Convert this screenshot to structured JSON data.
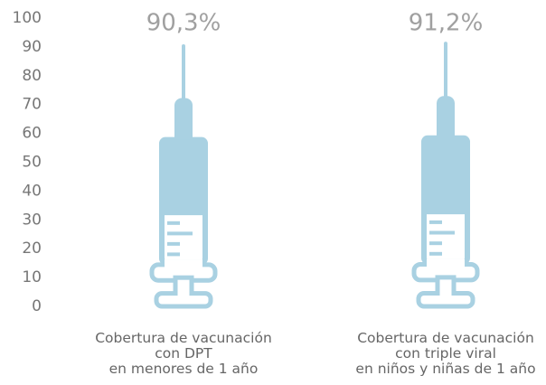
{
  "chart_data": {
    "type": "pictorial-syringe",
    "categories": [
      "Cobertura de vacunación\ncon DPT\nen menores de 1 año",
      "Cobertura de vacunación\ncon triple viral\nen niños y niñas de 1 año"
    ],
    "values": [
      90.3,
      91.2
    ],
    "value_labels": [
      "90,3%",
      "91,2%"
    ],
    "color": "#a9d1e2",
    "ylim": [
      0,
      100
    ],
    "yticks": [
      0,
      10,
      20,
      30,
      40,
      50,
      60,
      70,
      80,
      90,
      100
    ],
    "grid": false
  }
}
